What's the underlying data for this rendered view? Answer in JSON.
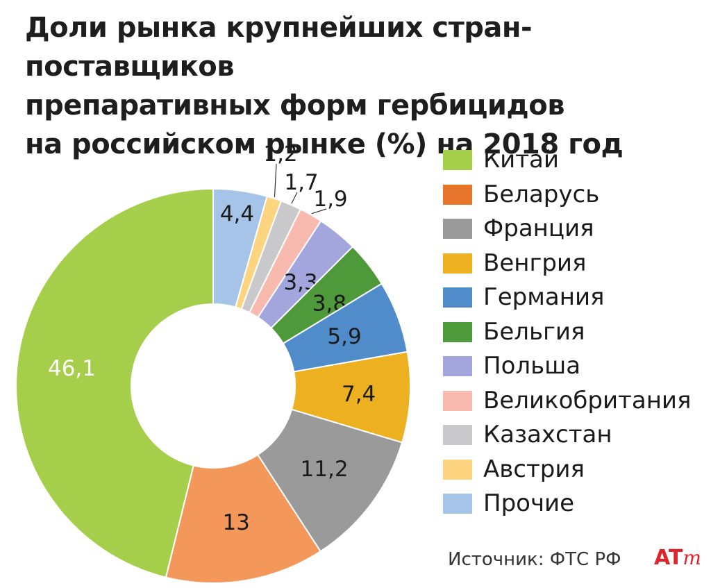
{
  "title": {
    "line1": "Доли рынка крупнейших стран-поставщиков",
    "line2": "препаративных форм гербицидов",
    "line3": "на российском рынке (%) на 2018 год"
  },
  "chart_data": {
    "type": "pie",
    "variant": "donut",
    "title": "Доли рынка крупнейших стран-поставщиков препаративных форм гербицидов на российском рынке (%) на 2018 год",
    "unit": "%",
    "legend_position": "right",
    "slices": [
      {
        "label": "Прочие",
        "value": 4.4,
        "display": "4,4",
        "color": "#a6c4e8"
      },
      {
        "label": "Австрия",
        "value": 1.2,
        "display": "1,2",
        "color": "#fdd47f"
      },
      {
        "label": "Казахстан",
        "value": 1.7,
        "display": "1,7",
        "color": "#c9c9cb"
      },
      {
        "label": "Великобритания",
        "value": 1.9,
        "display": "1,9",
        "color": "#f8b9ae"
      },
      {
        "label": "Польша",
        "value": 3.3,
        "display": "3,3",
        "color": "#a2a6dc"
      },
      {
        "label": "Бельгия",
        "value": 3.8,
        "display": "3,8",
        "color": "#4e9a3a"
      },
      {
        "label": "Германия",
        "value": 5.9,
        "display": "5,9",
        "color": "#4f8cc9"
      },
      {
        "label": "Венгрия",
        "value": 7.4,
        "display": "7,4",
        "color": "#ecb020"
      },
      {
        "label": "Франция",
        "value": 11.2,
        "display": "11,2",
        "color": "#9a9a9a"
      },
      {
        "label": "Беларусь",
        "value": 13,
        "display": "13",
        "color": "#f4975a"
      },
      {
        "label": "Китай",
        "value": 46.1,
        "display": "46,1",
        "color": "#a5cf4a"
      }
    ]
  },
  "legend": [
    {
      "label": "Китай",
      "color": "#a5cf4a"
    },
    {
      "label": "Беларусь",
      "color": "#e8762a"
    },
    {
      "label": "Франция",
      "color": "#9a9a9a"
    },
    {
      "label": "Венгрия",
      "color": "#ecb020"
    },
    {
      "label": "Германия",
      "color": "#4f8cc9"
    },
    {
      "label": "Бельгия",
      "color": "#4e9a3a"
    },
    {
      "label": "Польша",
      "color": "#a2a6dc"
    },
    {
      "label": "Великобритания",
      "color": "#f8b9ae"
    },
    {
      "label": "Казахстан",
      "color": "#c9c9cb"
    },
    {
      "label": "Австрия",
      "color": "#fdd47f"
    },
    {
      "label": "Прочие",
      "color": "#a6c4e8"
    }
  ],
  "source": "Источник: ФТС РФ",
  "logo": {
    "text": "AT",
    "suffix": "m"
  }
}
